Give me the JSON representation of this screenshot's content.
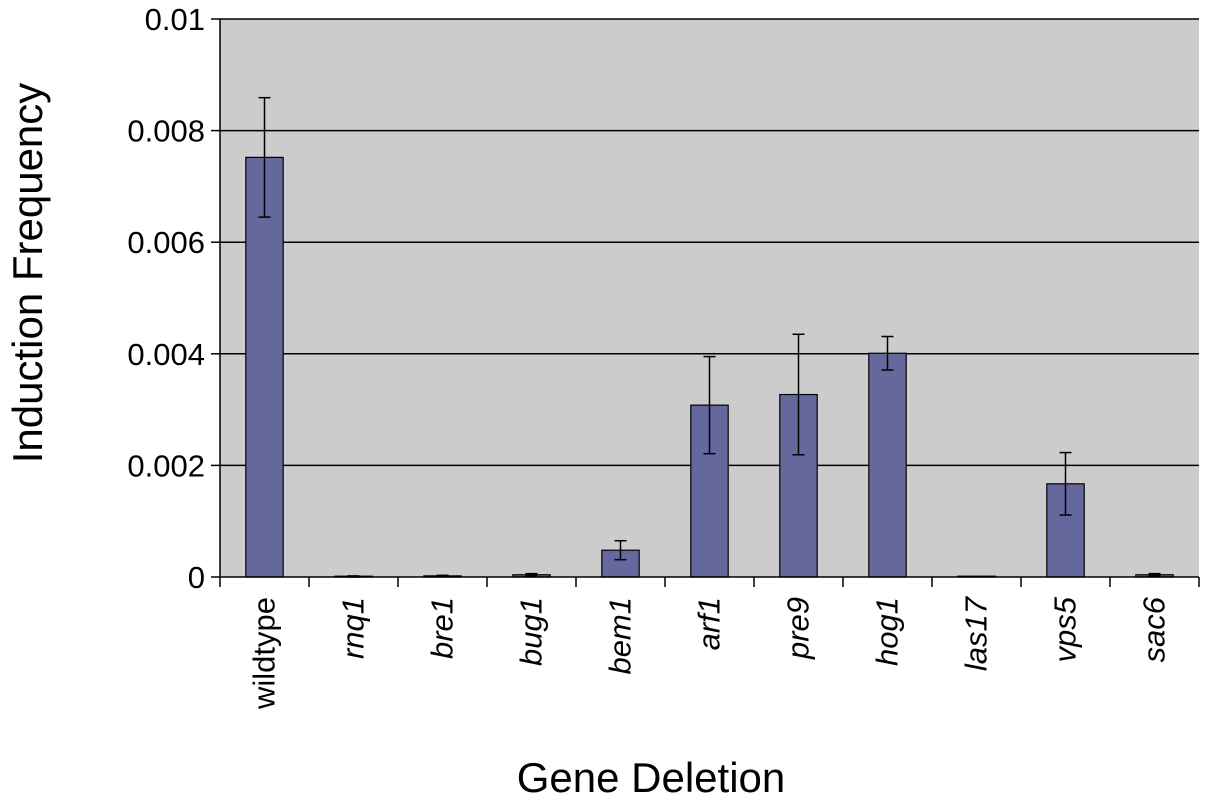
{
  "chart_data": {
    "type": "bar",
    "title": "",
    "xlabel": "Gene Deletion",
    "ylabel": "Induction Frequency",
    "categories": [
      "wildtype",
      "rnq1",
      "bre1",
      "bug1",
      "bem1",
      "arf1",
      "pre9",
      "hog1",
      "las17",
      "vps5",
      "sac6"
    ],
    "category_italic": [
      false,
      true,
      true,
      true,
      true,
      true,
      true,
      true,
      true,
      true,
      true
    ],
    "series": [
      {
        "values": [
          0.00752,
          1e-05,
          2e-05,
          4e-05,
          0.00048,
          0.00308,
          0.00327,
          0.00401,
          0.0,
          0.00167,
          4e-05
        ],
        "errors": [
          0.00107,
          1e-05,
          1e-05,
          2e-05,
          0.00017,
          0.00087,
          0.00108,
          0.0003,
          0.0,
          0.00056,
          2e-05
        ]
      }
    ],
    "ylim": [
      0,
      0.01
    ],
    "yticks": [
      0,
      0.002,
      0.004,
      0.006,
      0.008,
      0.01
    ],
    "ytick_labels": [
      "0",
      "0.002",
      "0.004",
      "0.006",
      "0.008",
      "0.01"
    ],
    "grid": "horizontal",
    "colors": {
      "bar": "#65689c",
      "plot_background": "#cccccc",
      "gridline": "#000000"
    }
  }
}
